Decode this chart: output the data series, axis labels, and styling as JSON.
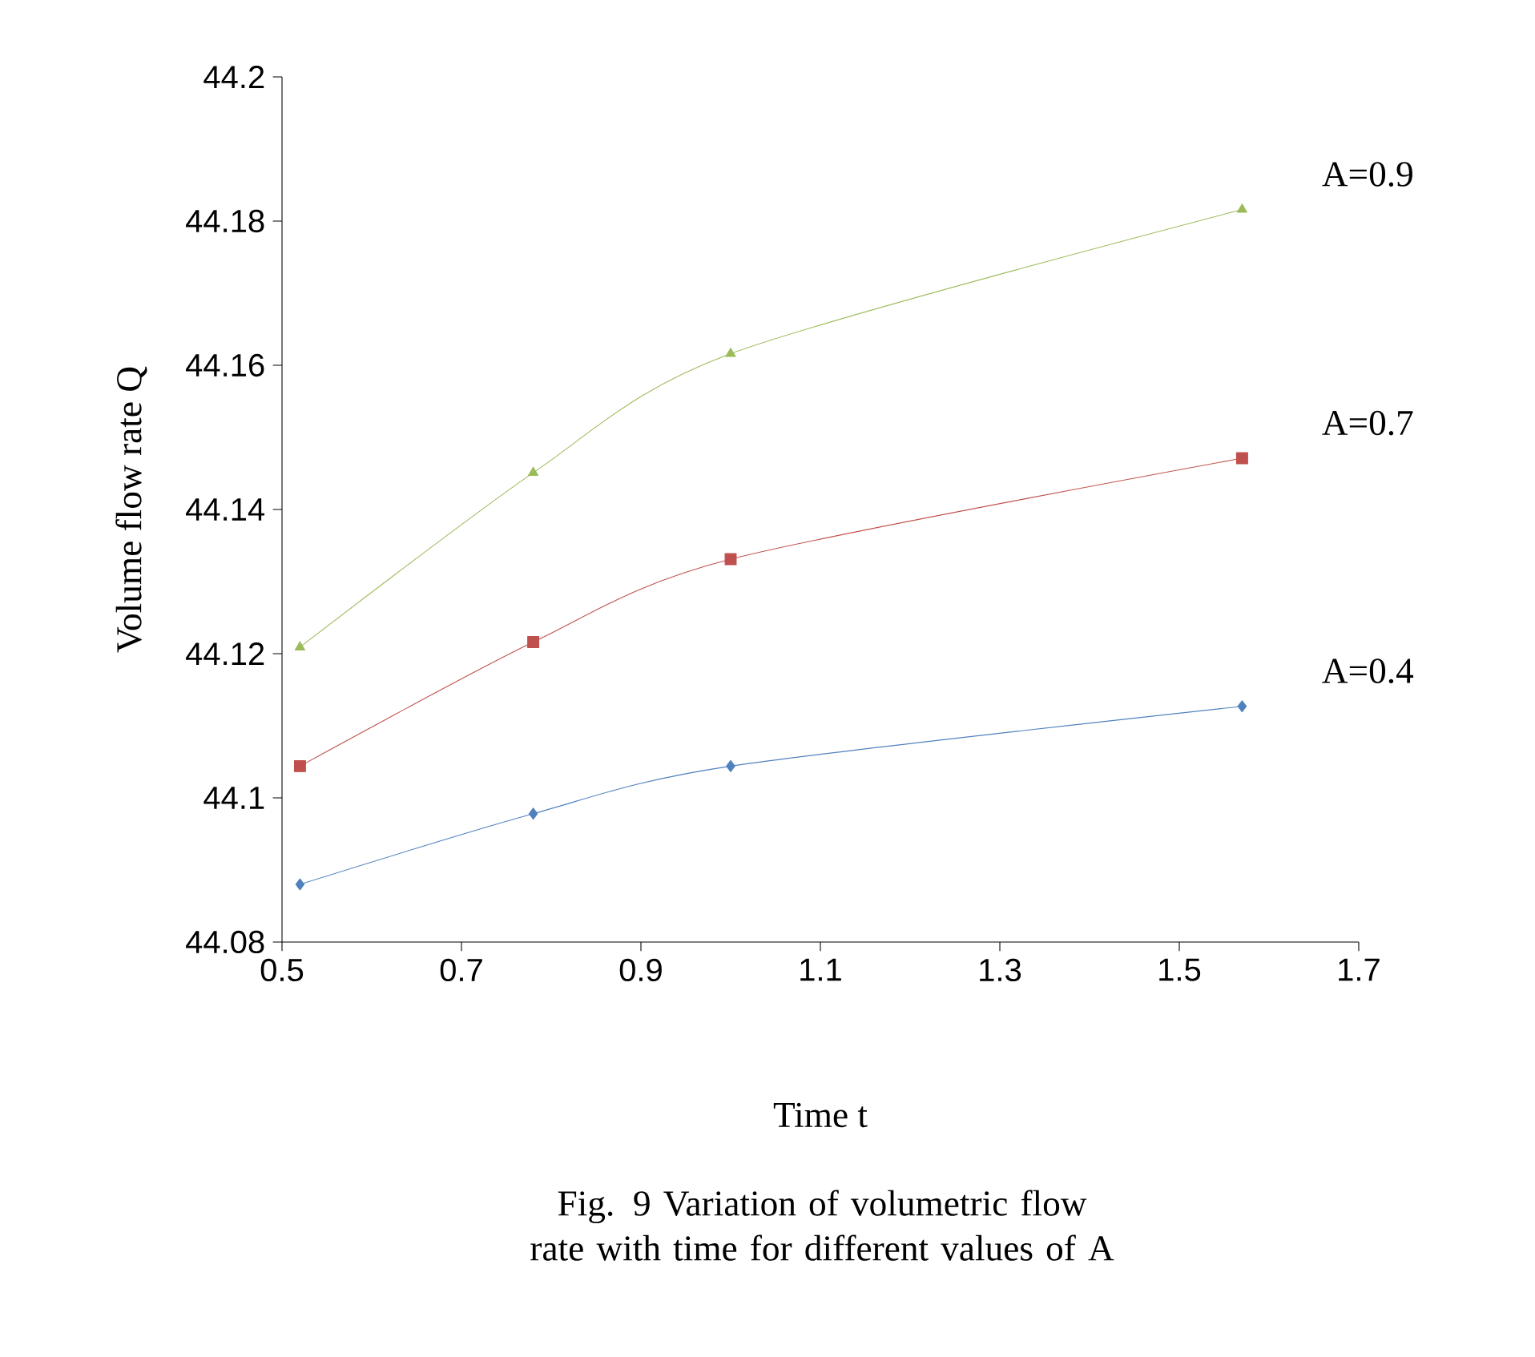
{
  "chart_data": {
    "type": "line",
    "xlabel": "Time t",
    "ylabel": "Volume flow rate Q",
    "annotations": [
      "Fig. 9 Variation of volumetric flow rate with time for different values of A"
    ],
    "x": [
      0.52,
      0.78,
      1.0,
      1.57
    ],
    "series": [
      {
        "name": "A=0.4",
        "color": "#4f81bd",
        "marker": "diamond",
        "values": [
          44.088,
          44.0978,
          44.1044,
          44.1127
        ]
      },
      {
        "name": "A=0.7",
        "color": "#c0504d",
        "marker": "square",
        "values": [
          44.1044,
          44.1216,
          44.1331,
          44.1471
        ]
      },
      {
        "name": "A=0.9",
        "color": "#9bbb59",
        "marker": "triangle",
        "values": [
          44.1209,
          44.1451,
          44.1616,
          44.1816
        ]
      }
    ],
    "xlim": [
      0.5,
      1.7
    ],
    "ylim": [
      44.08,
      44.2
    ],
    "xticks": [
      0.5,
      0.7,
      0.9,
      1.1,
      1.3,
      1.5,
      1.7
    ],
    "yticks": [
      44.08,
      44.1,
      44.12,
      44.14,
      44.16,
      44.18,
      44.2
    ],
    "grid": false,
    "legend": false,
    "line_style": "solid"
  }
}
